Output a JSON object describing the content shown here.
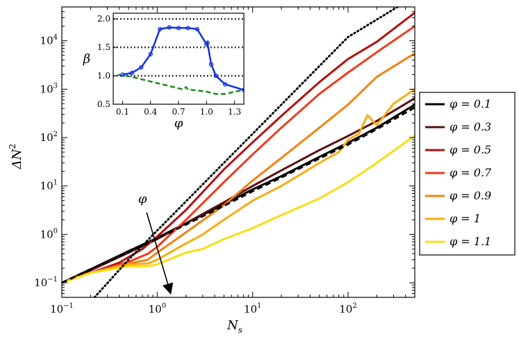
{
  "chart_data": {
    "type": "line",
    "xscale": "log",
    "yscale": "log",
    "xlim": [
      0.1,
      500
    ],
    "ylim": [
      0.05,
      50000
    ],
    "xlabel": "N_s",
    "ylabel": "ΔN²",
    "x_ticks": [
      {
        "value": 0.1,
        "base": "10",
        "exp": "−1"
      },
      {
        "value": 1,
        "base": "10",
        "exp": "0"
      },
      {
        "value": 10,
        "base": "10",
        "exp": "1"
      },
      {
        "value": 100,
        "base": "10",
        "exp": "2"
      }
    ],
    "y_ticks": [
      {
        "value": 0.1,
        "base": "10",
        "exp": "−1"
      },
      {
        "value": 1,
        "base": "10",
        "exp": "0"
      },
      {
        "value": 10,
        "base": "10",
        "exp": "1"
      },
      {
        "value": 100,
        "base": "10",
        "exp": "2"
      },
      {
        "value": 1000,
        "base": "10",
        "exp": "3"
      },
      {
        "value": 10000,
        "base": "10",
        "exp": "4"
      }
    ],
    "series": [
      {
        "name": "φ = 0.1",
        "color": "#000000",
        "points": [
          [
            0.1,
            0.1
          ],
          [
            0.2,
            0.19
          ],
          [
            0.5,
            0.45
          ],
          [
            1,
            0.85
          ],
          [
            2,
            1.7
          ],
          [
            5,
            4.2
          ],
          [
            10,
            8.5
          ],
          [
            20,
            16
          ],
          [
            50,
            40
          ],
          [
            100,
            78
          ],
          [
            200,
            160
          ],
          [
            500,
            480
          ]
        ]
      },
      {
        "name": "φ = 0.3",
        "color": "#5a0e0e",
        "points": [
          [
            0.1,
            0.1
          ],
          [
            0.2,
            0.18
          ],
          [
            0.5,
            0.42
          ],
          [
            1,
            0.8
          ],
          [
            2,
            1.7
          ],
          [
            5,
            4.6
          ],
          [
            10,
            10
          ],
          [
            20,
            21
          ],
          [
            50,
            55
          ],
          [
            100,
            108
          ],
          [
            200,
            220
          ],
          [
            500,
            650
          ]
        ]
      },
      {
        "name": "φ = 0.5",
        "color": "#b21010",
        "points": [
          [
            0.1,
            0.1
          ],
          [
            0.2,
            0.16
          ],
          [
            0.4,
            0.26
          ],
          [
            0.7,
            0.5
          ],
          [
            1,
            0.9
          ],
          [
            2,
            3.2
          ],
          [
            5,
            22
          ],
          [
            10,
            80
          ],
          [
            20,
            280
          ],
          [
            50,
            1400
          ],
          [
            100,
            4200
          ],
          [
            200,
            9500
          ],
          [
            500,
            38000
          ]
        ]
      },
      {
        "name": "φ = 0.7",
        "color": "#ee3a1a",
        "points": [
          [
            0.1,
            0.1
          ],
          [
            0.2,
            0.16
          ],
          [
            0.5,
            0.27
          ],
          [
            0.8,
            0.4
          ],
          [
            1,
            0.55
          ],
          [
            2,
            2
          ],
          [
            5,
            12
          ],
          [
            10,
            45
          ],
          [
            20,
            160
          ],
          [
            50,
            800
          ],
          [
            100,
            2200
          ],
          [
            200,
            5800
          ],
          [
            500,
            20000
          ]
        ]
      },
      {
        "name": "φ = 0.9",
        "color": "#f5820f",
        "points": [
          [
            0.1,
            0.1
          ],
          [
            0.2,
            0.16
          ],
          [
            0.5,
            0.25
          ],
          [
            0.8,
            0.3
          ],
          [
            1,
            0.42
          ],
          [
            2,
            1.1
          ],
          [
            5,
            4
          ],
          [
            10,
            13
          ],
          [
            20,
            38
          ],
          [
            50,
            160
          ],
          [
            100,
            480
          ],
          [
            200,
            1800
          ],
          [
            500,
            5500
          ]
        ]
      },
      {
        "name": "φ = 1",
        "color": "#f9ab10",
        "points": [
          [
            0.1,
            0.1
          ],
          [
            0.2,
            0.16
          ],
          [
            0.5,
            0.24
          ],
          [
            0.8,
            0.25
          ],
          [
            1,
            0.3
          ],
          [
            2,
            0.65
          ],
          [
            3,
            1
          ],
          [
            5,
            2
          ],
          [
            10,
            5
          ],
          [
            20,
            10
          ],
          [
            50,
            30
          ],
          [
            80,
            50
          ],
          [
            100,
            90
          ],
          [
            130,
            120
          ],
          [
            160,
            290
          ],
          [
            200,
            180
          ],
          [
            300,
            500
          ],
          [
            500,
            1000
          ]
        ]
      },
      {
        "name": "φ = 1.1",
        "color": "#f7df10",
        "points": [
          [
            0.1,
            0.1
          ],
          [
            0.2,
            0.16
          ],
          [
            0.5,
            0.22
          ],
          [
            0.8,
            0.22
          ],
          [
            1,
            0.24
          ],
          [
            2,
            0.42
          ],
          [
            3,
            0.5
          ],
          [
            5,
            0.8
          ],
          [
            10,
            1.35
          ],
          [
            20,
            2.5
          ],
          [
            50,
            5.5
          ],
          [
            100,
            12
          ],
          [
            200,
            30
          ],
          [
            500,
            110
          ]
        ]
      }
    ],
    "dashed_line": {
      "color": "#000000",
      "points": [
        [
          0.1,
          0.1
        ],
        [
          0.2,
          0.19
        ],
        [
          0.5,
          0.43
        ],
        [
          1,
          0.82
        ],
        [
          2,
          1.6
        ],
        [
          5,
          3.9
        ],
        [
          10,
          7.8
        ],
        [
          20,
          15
        ],
        [
          50,
          37
        ],
        [
          100,
          72
        ],
        [
          200,
          150
        ],
        [
          500,
          420
        ]
      ]
    },
    "dotted_line": {
      "color": "#000000",
      "points": [
        [
          0.22,
          0.05
        ],
        [
          0.5,
          0.3
        ],
        [
          1,
          1.2
        ],
        [
          10,
          120
        ],
        [
          100,
          12000
        ],
        [
          330,
          50000
        ]
      ]
    },
    "annotation": {
      "label": "φ",
      "arrow_from": [
        0.7,
        4.5
      ],
      "arrow_to": [
        1.35,
        0.07
      ]
    },
    "legend": {
      "placement": "right-outside",
      "entries": [
        "φ = 0.1",
        "φ = 0.3",
        "φ = 0.5",
        "φ = 0.7",
        "φ = 0.9",
        "φ = 1",
        "φ = 1.1"
      ]
    },
    "inset": {
      "xlabel": "φ",
      "ylabel": "β",
      "xlim": [
        0,
        1.4
      ],
      "ylim": [
        0.5,
        2.1
      ],
      "x_ticks": [
        "0.1",
        "0.4",
        "0.7",
        "1.0",
        "1.3"
      ],
      "x_tick_values": [
        0.1,
        0.4,
        0.7,
        1.0,
        1.3
      ],
      "y_ticks": [
        "0.5",
        "1.0",
        "1.5",
        "2.0"
      ],
      "y_tick_values": [
        0.5,
        1.0,
        1.5,
        2.0
      ],
      "dotted_gridlines_y": [
        1.0,
        1.5,
        2.0
      ],
      "blue_series": {
        "color": "#1030e0",
        "points": [
          [
            0.1,
            1.02
          ],
          [
            0.2,
            1.05
          ],
          [
            0.3,
            1.15
          ],
          [
            0.4,
            1.38
          ],
          [
            0.5,
            1.82
          ],
          [
            0.6,
            1.85
          ],
          [
            0.7,
            1.84
          ],
          [
            0.8,
            1.84
          ],
          [
            0.9,
            1.82
          ],
          [
            1.0,
            1.55
          ],
          [
            1.01,
            1.58
          ],
          [
            1.05,
            1.2
          ],
          [
            1.1,
            1.0
          ],
          [
            1.2,
            0.85
          ],
          [
            1.4,
            0.75
          ]
        ]
      },
      "green_series": {
        "color": "#1a8a1a",
        "points": [
          [
            0.05,
            1.02
          ],
          [
            0.2,
            0.98
          ],
          [
            0.4,
            0.9
          ],
          [
            0.6,
            0.82
          ],
          [
            0.7,
            0.78
          ],
          [
            0.75,
            0.76
          ],
          [
            0.78,
            0.8
          ],
          [
            0.8,
            0.76
          ],
          [
            0.9,
            0.74
          ],
          [
            1.0,
            0.72
          ],
          [
            1.1,
            0.68
          ],
          [
            1.2,
            0.68
          ],
          [
            1.3,
            0.72
          ],
          [
            1.4,
            0.75
          ]
        ]
      }
    }
  }
}
